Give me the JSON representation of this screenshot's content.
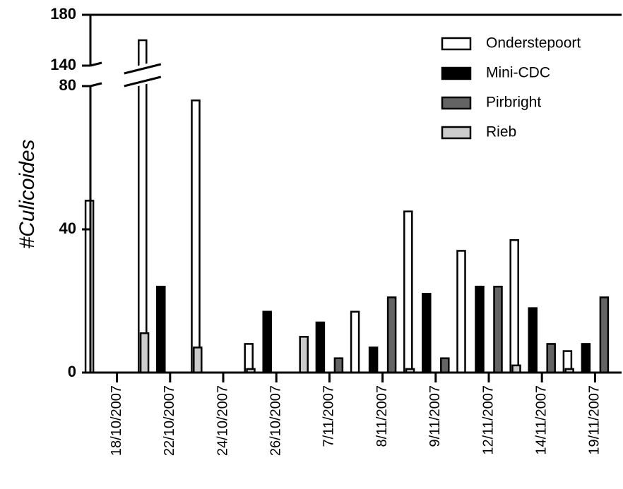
{
  "chart_data": {
    "type": "bar",
    "ylabel": "#Culicoides",
    "xlabel": "",
    "categories": [
      "18/10/2007",
      "22/10/2007",
      "24/10/2007",
      "26/10/2007",
      "7/11/2007",
      "8/11/2007",
      "9/11/2007",
      "12/11/2007",
      "14/11/2007",
      "19/11/2007"
    ],
    "series": [
      {
        "name": "Onderstepoort",
        "color": "#ffffff",
        "values": [
          48,
          160,
          76,
          8,
          0,
          17,
          45,
          34,
          37,
          6
        ]
      },
      {
        "name": "Mini-CDC",
        "color": "#000000",
        "values": [
          0,
          24,
          0,
          17,
          14,
          7,
          22,
          24,
          18,
          8
        ]
      },
      {
        "name": "Pirbright",
        "color": "#646464",
        "values": [
          0,
          0,
          0,
          0,
          4,
          21,
          4,
          24,
          8,
          21
        ]
      },
      {
        "name": "Rieb",
        "color": "#cccccc",
        "values": [
          11,
          7,
          1,
          10,
          0,
          1,
          0,
          2,
          1,
          0
        ]
      }
    ],
    "y_axis": {
      "broken": true,
      "lower_segment": [
        0,
        80
      ],
      "upper_segment": [
        140,
        180
      ],
      "lower_ticks": [
        "0",
        "40",
        "80"
      ],
      "upper_ticks": [
        "140",
        "180"
      ]
    },
    "legend": {
      "placement": "top-right"
    },
    "grid": false
  }
}
